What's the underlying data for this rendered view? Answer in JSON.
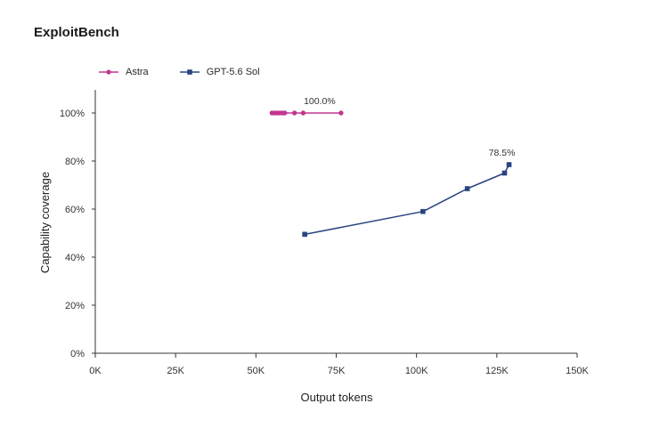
{
  "title": "ExploitBench",
  "colors": {
    "astra": "#c2368f",
    "gpt": "#2a4480",
    "axis": "#333333"
  },
  "legend": [
    {
      "key": "astra",
      "label": "Astra",
      "marker": "circle"
    },
    {
      "key": "gpt",
      "label": "GPT-5.6 Sol",
      "marker": "square"
    }
  ],
  "chart_data": {
    "type": "line",
    "title": "ExploitBench",
    "xlabel": "Output tokens",
    "ylabel": "Capability coverage",
    "xlim": [
      0,
      150000
    ],
    "ylim": [
      0,
      100
    ],
    "xticks": [
      {
        "value": 0,
        "label": "0K"
      },
      {
        "value": 25000,
        "label": "25K"
      },
      {
        "value": 50000,
        "label": "50K"
      },
      {
        "value": 75000,
        "label": "75K"
      },
      {
        "value": 100000,
        "label": "100K"
      },
      {
        "value": 125000,
        "label": "125K"
      },
      {
        "value": 150000,
        "label": "150K"
      }
    ],
    "yticks": [
      {
        "value": 0,
        "label": "0%"
      },
      {
        "value": 20,
        "label": "20%"
      },
      {
        "value": 40,
        "label": "40%"
      },
      {
        "value": 60,
        "label": "60%"
      },
      {
        "value": 80,
        "label": "80%"
      },
      {
        "value": 100,
        "label": "100%"
      }
    ],
    "grid": false,
    "legend_position": "top-left",
    "series": [
      {
        "name": "Astra",
        "key": "astra",
        "marker": "circle",
        "x": [
          55000,
          55800,
          56600,
          57400,
          58200,
          59000,
          62000,
          64700,
          76500
        ],
        "y": [
          100,
          100,
          100,
          100,
          100,
          100,
          100,
          100,
          100
        ],
        "end_label": "100.0%"
      },
      {
        "name": "GPT-5.6 Sol",
        "key": "gpt",
        "marker": "square",
        "x": [
          65200,
          102000,
          115800,
          127400,
          128800
        ],
        "y": [
          49.5,
          59,
          68.5,
          75,
          78.5
        ],
        "end_label": "78.5%"
      }
    ]
  }
}
